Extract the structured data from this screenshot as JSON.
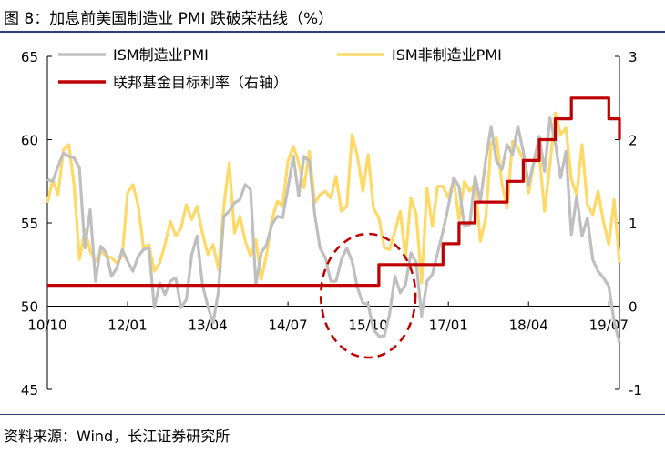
{
  "title": "图 8：加息前美国制造业 PMI 跌破荣枯线（%）",
  "source": "资料来源：Wind，长江证券研究所",
  "colors": {
    "ism_mfg": "#bfbfbf",
    "ism_nonmfg": "#ffd966",
    "fed_rate": "#c00000",
    "annotation": "#c00000",
    "rule": "#2e3f73"
  },
  "chart_data": {
    "type": "line",
    "legend_placement": "top-left",
    "grid": false,
    "x_ticks": [
      "10/10",
      "12/01",
      "13/04",
      "14/07",
      "15/10",
      "17/01",
      "18/04",
      "19/07"
    ],
    "x_range": [
      "2010-10",
      "2019-09"
    ],
    "y_left": {
      "ticks": [
        "45",
        "50",
        "55",
        "60",
        "65"
      ],
      "range": [
        45,
        65
      ]
    },
    "y_right": {
      "ticks": [
        "-1",
        "0",
        "1",
        "2",
        "3"
      ],
      "range": [
        -1,
        3
      ]
    },
    "series": [
      {
        "name": "ISM制造业PMI",
        "axis": "left",
        "x": [
          "2010-10",
          "2010-11",
          "2010-12",
          "2011-01",
          "2011-02",
          "2011-03",
          "2011-04",
          "2011-05",
          "2011-06",
          "2011-07",
          "2011-08",
          "2011-09",
          "2011-10",
          "2011-11",
          "2011-12",
          "2012-01",
          "2012-02",
          "2012-03",
          "2012-04",
          "2012-05",
          "2012-06",
          "2012-07",
          "2012-08",
          "2012-09",
          "2012-10",
          "2012-11",
          "2012-12",
          "2013-01",
          "2013-02",
          "2013-03",
          "2013-04",
          "2013-05",
          "2013-06",
          "2013-07",
          "2013-08",
          "2013-09",
          "2013-10",
          "2013-11",
          "2013-12",
          "2014-01",
          "2014-02",
          "2014-03",
          "2014-04",
          "2014-05",
          "2014-06",
          "2014-07",
          "2014-08",
          "2014-09",
          "2014-10",
          "2014-11",
          "2014-12",
          "2015-01",
          "2015-02",
          "2015-03",
          "2015-04",
          "2015-05",
          "2015-06",
          "2015-07",
          "2015-08",
          "2015-09",
          "2015-10",
          "2015-11",
          "2015-12",
          "2016-01",
          "2016-02",
          "2016-03",
          "2016-04",
          "2016-05",
          "2016-06",
          "2016-07",
          "2016-08",
          "2016-09",
          "2016-10",
          "2016-11",
          "2016-12",
          "2017-01",
          "2017-02",
          "2017-03",
          "2017-04",
          "2017-05",
          "2017-06",
          "2017-07",
          "2017-08",
          "2017-09",
          "2017-10",
          "2017-11",
          "2017-12",
          "2018-01",
          "2018-02",
          "2018-03",
          "2018-04",
          "2018-05",
          "2018-06",
          "2018-07",
          "2018-08",
          "2018-09",
          "2018-10",
          "2018-11",
          "2018-12",
          "2019-01",
          "2019-02",
          "2019-03",
          "2019-04",
          "2019-05",
          "2019-06",
          "2019-07",
          "2019-08",
          "2019-09"
        ],
        "values": [
          57.6,
          57.5,
          58.4,
          59.2,
          59.0,
          58.9,
          58.3,
          53.5,
          55.8,
          51.5,
          53.6,
          53.2,
          51.8,
          52.3,
          53.4,
          52.7,
          52.1,
          53.0,
          53.4,
          53.5,
          49.9,
          51.4,
          50.7,
          51.5,
          51.7,
          49.9,
          50.4,
          53.1,
          54.2,
          51.3,
          50.0,
          49.0,
          50.9,
          55.4,
          55.7,
          56.2,
          56.4,
          57.3,
          57.0,
          51.3,
          53.2,
          53.7,
          54.9,
          55.4,
          55.3,
          57.1,
          59.0,
          56.6,
          59.0,
          58.7,
          55.5,
          53.5,
          52.9,
          51.5,
          51.5,
          52.8,
          53.5,
          52.7,
          51.1,
          50.2,
          50.1,
          48.6,
          48.2,
          48.2,
          49.5,
          51.8,
          50.8,
          51.3,
          53.2,
          52.6,
          49.4,
          51.5,
          51.9,
          53.2,
          54.5,
          56.0,
          57.7,
          57.2,
          54.8,
          54.9,
          57.8,
          56.3,
          58.8,
          60.8,
          58.7,
          58.2,
          59.7,
          59.1,
          60.8,
          59.3,
          57.3,
          58.7,
          60.2,
          58.1,
          61.3,
          59.8,
          57.7,
          59.3,
          54.3,
          56.6,
          54.2,
          55.3,
          52.8,
          52.1,
          51.7,
          51.2,
          49.1,
          47.8
        ]
      },
      {
        "name": "ISM非制造业PMI",
        "axis": "left",
        "x": [
          "2010-10",
          "2010-11",
          "2010-12",
          "2011-01",
          "2011-02",
          "2011-03",
          "2011-04",
          "2011-05",
          "2011-06",
          "2011-07",
          "2011-08",
          "2011-09",
          "2011-10",
          "2011-11",
          "2011-12",
          "2012-01",
          "2012-02",
          "2012-03",
          "2012-04",
          "2012-05",
          "2012-06",
          "2012-07",
          "2012-08",
          "2012-09",
          "2012-10",
          "2012-11",
          "2012-12",
          "2013-01",
          "2013-02",
          "2013-03",
          "2013-04",
          "2013-05",
          "2013-06",
          "2013-07",
          "2013-08",
          "2013-09",
          "2013-10",
          "2013-11",
          "2013-12",
          "2014-01",
          "2014-02",
          "2014-03",
          "2014-04",
          "2014-05",
          "2014-06",
          "2014-07",
          "2014-08",
          "2014-09",
          "2014-10",
          "2014-11",
          "2014-12",
          "2015-01",
          "2015-02",
          "2015-03",
          "2015-04",
          "2015-05",
          "2015-06",
          "2015-07",
          "2015-08",
          "2015-09",
          "2015-10",
          "2015-11",
          "2015-12",
          "2016-01",
          "2016-02",
          "2016-03",
          "2016-04",
          "2016-05",
          "2016-06",
          "2016-07",
          "2016-08",
          "2016-09",
          "2016-10",
          "2016-11",
          "2016-12",
          "2017-01",
          "2017-02",
          "2017-03",
          "2017-04",
          "2017-05",
          "2017-06",
          "2017-07",
          "2017-08",
          "2017-09",
          "2017-10",
          "2017-11",
          "2017-12",
          "2018-01",
          "2018-02",
          "2018-03",
          "2018-04",
          "2018-05",
          "2018-06",
          "2018-07",
          "2018-08",
          "2018-09",
          "2018-10",
          "2018-11",
          "2018-12",
          "2019-01",
          "2019-02",
          "2019-03",
          "2019-04",
          "2019-05",
          "2019-06",
          "2019-07",
          "2019-08",
          "2019-09"
        ],
        "values": [
          56.2,
          57.6,
          56.7,
          59.4,
          59.7,
          57.3,
          52.8,
          54.6,
          53.3,
          52.7,
          53.3,
          53.0,
          52.9,
          52.6,
          53.0,
          56.8,
          57.3,
          56.0,
          53.5,
          53.7,
          52.1,
          52.6,
          53.7,
          55.1,
          54.2,
          54.7,
          56.1,
          55.2,
          56.0,
          54.4,
          53.1,
          53.7,
          52.2,
          56.0,
          58.6,
          54.4,
          55.4,
          53.9,
          53.0,
          54.0,
          51.6,
          53.1,
          55.2,
          56.3,
          56.0,
          58.7,
          59.6,
          58.6,
          57.1,
          59.3,
          56.2,
          56.7,
          56.9,
          56.5,
          57.8,
          55.7,
          56.0,
          60.3,
          59.0,
          56.9,
          59.1,
          55.9,
          55.3,
          53.5,
          53.4,
          54.5,
          55.7,
          52.9,
          56.5,
          55.5,
          51.4,
          57.1,
          54.8,
          57.2,
          57.2,
          56.5,
          57.6,
          55.2,
          57.5,
          56.9,
          57.4,
          53.9,
          55.3,
          59.8,
          60.1,
          57.4,
          55.9,
          59.9,
          59.5,
          58.8,
          56.8,
          58.6,
          59.1,
          55.7,
          58.5,
          61.6,
          60.3,
          60.7,
          57.6,
          56.7,
          59.7,
          56.1,
          55.5,
          56.9,
          55.1,
          53.7,
          56.4,
          52.6
        ]
      },
      {
        "name": "联邦基金目标利率（右轴）",
        "axis": "right",
        "step": true,
        "x": [
          "2010-10",
          "2015-12",
          "2016-12",
          "2017-03",
          "2017-06",
          "2017-12",
          "2018-03",
          "2018-06",
          "2018-09",
          "2018-12",
          "2019-07",
          "2019-09"
        ],
        "values": [
          0.25,
          0.5,
          0.75,
          1.0,
          1.25,
          1.5,
          1.75,
          2.0,
          2.25,
          2.5,
          2.25,
          2.0
        ]
      }
    ],
    "annotation": {
      "type": "dashed-ellipse",
      "around": "2015-10"
    }
  }
}
